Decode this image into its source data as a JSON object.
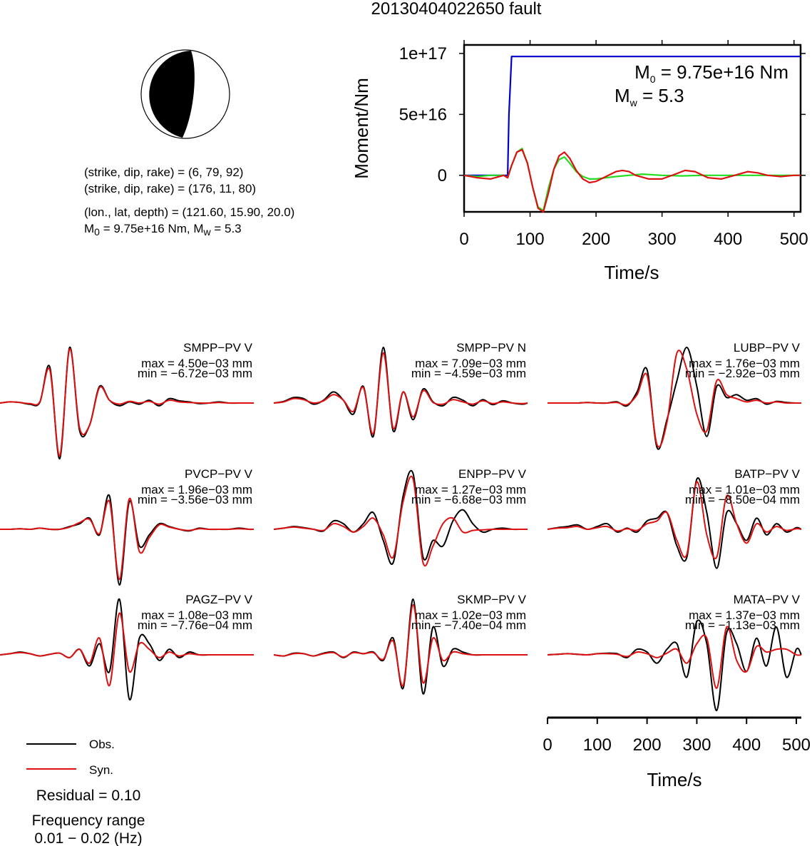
{
  "title": "20130404022650 fault",
  "mechanism": {
    "line1": "(strike, dip, rake) = (6, 79, 92)",
    "line2": "(strike, dip, rake) = (176, 11, 80)",
    "line3": "(lon., lat, depth) = (121.60, 15.90, 20.0)",
    "m0_prefix": "M",
    "m0_sub": "0",
    "m0_rest": " = 9.75e+16 Nm, M",
    "mw_sub": "w",
    "mw_rest": " = 5.3"
  },
  "stf": {
    "ylabel": "Moment/Nm",
    "xlabel": "Time/s",
    "annot_m0_prefix": "M",
    "annot_m0_sub": "0",
    "annot_m0_rest": " = 9.75e+16 Nm",
    "annot_mw_prefix": "M",
    "annot_mw_sub": "w",
    "annot_mw_rest": " = 5.3"
  },
  "wave_axis": {
    "xlabel": "Time/s"
  },
  "legend": {
    "obs": "Obs.",
    "syn": "Syn.",
    "residual": "Residual = 0.10",
    "freq_title": "Frequency range",
    "freq_value": "0.01 − 0.02 (Hz)"
  },
  "colors": {
    "moment": "#0000cc",
    "stf_green": "#22dd22",
    "observed": "#000000",
    "synthetic": "#dd1111"
  },
  "chart_data": [
    {
      "type": "line",
      "title": "",
      "xlabel": "Time/s",
      "ylabel": "Moment/Nm",
      "xlim": [
        0,
        510
      ],
      "ylim": [
        -3e+16,
        1.07e+17
      ],
      "xticks": [
        0,
        100,
        200,
        300,
        400,
        500
      ],
      "xtick_labels": [
        "0",
        "100",
        "200",
        "300",
        "400",
        "500"
      ],
      "yticks": [
        0,
        5e+16,
        1e+17
      ],
      "ytick_labels": [
        "0",
        "5e+16",
        "1e+17"
      ],
      "series": [
        {
          "name": "",
          "x": [
            0,
            60,
            66,
            68,
            72,
            510
          ],
          "y": [
            0,
            0,
            0,
            5e+16,
            9.75e+16,
            9.75e+16
          ]
        },
        {
          "name": "",
          "x": [
            0,
            20,
            40,
            60,
            66,
            72,
            80,
            88,
            96,
            104,
            112,
            120,
            128,
            136,
            144,
            152,
            160,
            170,
            180,
            190,
            200,
            215,
            230,
            250,
            270,
            300,
            330,
            360,
            400,
            440,
            480,
            510
          ],
          "y": [
            0,
            -1000000000000000.0,
            0,
            0,
            -2000000000000000.0,
            8000000000000000.0,
            1.9e+16,
            2.2e+16,
            1e+16,
            -1e+16,
            -2.6e+16,
            -2.9e+16,
            -1e+16,
            5000000000000000.0,
            1.3e+16,
            1.5e+16,
            1e+16,
            3000000000000000.0,
            -1000000000000000.0,
            -3000000000000000.0,
            -3000000000000000.0,
            -2000000000000000.0,
            -1000000000000000.0,
            0,
            1000000000000000.0,
            0,
            -500000000000000.0,
            0,
            0,
            0,
            0,
            0
          ]
        },
        {
          "name": "",
          "x": [
            0,
            20,
            40,
            60,
            66,
            72,
            80,
            88,
            96,
            104,
            112,
            120,
            128,
            136,
            144,
            152,
            160,
            170,
            180,
            190,
            200,
            215,
            230,
            240,
            250,
            260,
            280,
            300,
            320,
            335,
            350,
            370,
            390,
            410,
            430,
            445,
            460,
            480,
            500,
            510
          ],
          "y": [
            0,
            -2000000000000000.0,
            -3000000000000000.0,
            0,
            -2000000000000000.0,
            8000000000000000.0,
            1.9e+16,
            2.1e+16,
            1e+16,
            -1e+16,
            -2.7e+16,
            -3e+16,
            -1.4e+16,
            5000000000000000.0,
            1.6e+16,
            1.9e+16,
            1.4e+16,
            4000000000000000.0,
            -3000000000000000.0,
            -6000000000000000.0,
            -5000000000000000.0,
            -1000000000000000.0,
            3000000000000000.0,
            4000000000000000.0,
            3000000000000000.0,
            0,
            -3000000000000000.0,
            -3000000000000000.0,
            1000000000000000.0,
            4000000000000000.0,
            3000000000000000.0,
            -2000000000000000.0,
            -3000000000000000.0,
            0,
            3000000000000000.0,
            2000000000000000.0,
            0,
            -1000000000000000.0,
            0,
            0
          ]
        }
      ]
    },
    {
      "type": "line",
      "title": "",
      "xlabel": "Time/s",
      "xlim": [
        0,
        510
      ],
      "xticks": [
        0,
        100,
        200,
        300,
        400,
        500
      ],
      "xtick_labels": [
        "0",
        "100",
        "200",
        "300",
        "400",
        "500"
      ],
      "x": [
        0,
        20,
        40,
        60,
        80,
        100,
        120,
        140,
        160,
        180,
        200,
        220,
        240,
        260,
        280,
        300,
        320,
        340,
        360,
        380,
        400,
        420,
        440,
        460,
        480,
        500,
        510
      ],
      "panels": [
        {
          "station": "SMPP−PV V",
          "max": "max = 4.50e−03 mm",
          "min": "min = −6.72e−03 mm",
          "obs": [
            0,
            0.02,
            0.01,
            -0.02,
            0.01,
            0.65,
            -1.0,
            1.0,
            -0.5,
            -0.4,
            0.3,
            0.05,
            -0.05,
            0.02,
            -0.02,
            0.05,
            -0.05,
            0.08,
            0.04,
            0.02,
            -0.01,
            0,
            0.02,
            0,
            0,
            0,
            0
          ],
          "syn": [
            0,
            0.02,
            0.01,
            -0.01,
            0.02,
            0.6,
            -0.95,
            0.97,
            -0.45,
            -0.4,
            0.28,
            0.05,
            -0.02,
            0.03,
            0,
            0.03,
            -0.02,
            0.05,
            0.02,
            0.01,
            0,
            0,
            0.01,
            0,
            0,
            0,
            0
          ]
        },
        {
          "station": "SMPP−PV N",
          "max": "max = 7.09e−03 mm",
          "min": "min = −4.59e−03 mm",
          "obs": [
            0,
            0.03,
            0.1,
            0.08,
            -0.02,
            0.05,
            0.2,
            0.05,
            -0.2,
            0.3,
            -0.6,
            1.0,
            -0.5,
            0.2,
            -0.3,
            0.25,
            0.02,
            -0.05,
            0.1,
            0.05,
            -0.05,
            0.06,
            -0.03,
            0.04,
            0,
            -0.02,
            0
          ],
          "syn": [
            0,
            0.02,
            0.08,
            0.06,
            0,
            0.04,
            0.15,
            0.05,
            -0.15,
            0.28,
            -0.55,
            0.9,
            -0.45,
            0.2,
            -0.25,
            0.22,
            0.01,
            -0.02,
            0.06,
            0.02,
            -0.02,
            0.04,
            -0.01,
            0.02,
            0,
            -0.01,
            0
          ]
        },
        {
          "station": "LUBP−PV V",
          "max": "max = 1.76e−03 mm",
          "min": "min = −2.92e−03 mm",
          "obs": [
            0,
            0,
            0,
            0,
            0.01,
            0,
            0,
            0.02,
            -0.05,
            0.2,
            0.6,
            -0.8,
            -0.3,
            0.4,
            1.0,
            0.3,
            -0.6,
            0.3,
            0.1,
            0.15,
            0.05,
            0.08,
            -0.02,
            0.03,
            0.01,
            0,
            0
          ],
          "syn": [
            0,
            0,
            0,
            0,
            0.01,
            0,
            0,
            0.01,
            -0.03,
            0.15,
            0.5,
            -0.75,
            -0.35,
            0.9,
            0.6,
            -0.2,
            -0.5,
            0.4,
            0.15,
            0.08,
            0.02,
            0.05,
            0,
            0.02,
            0,
            0,
            0
          ]
        },
        {
          "station": "PVCP−PV V",
          "max": "max = 1.96e−03 mm",
          "min": "min = −3.56e−03 mm",
          "obs": [
            0,
            0,
            0.01,
            0,
            0.02,
            0,
            0,
            0.05,
            0.1,
            0.2,
            -0.1,
            0.6,
            -1.0,
            0.5,
            -0.3,
            -0.1,
            0.1,
            0.05,
            0,
            -0.03,
            0.02,
            0,
            0,
            0,
            0.02,
            0,
            0
          ],
          "syn": [
            0,
            0,
            0.01,
            0,
            0.02,
            0,
            0,
            0.04,
            0.12,
            0.18,
            -0.08,
            0.5,
            -0.9,
            0.55,
            -0.4,
            -0.15,
            0.08,
            0.04,
            0,
            -0.02,
            0.01,
            0,
            0,
            0,
            0.01,
            0,
            0
          ]
        },
        {
          "station": "ENPP−PV V",
          "max": "max = 1.27e−03 mm",
          "min": "min = −6.68e−03 mm",
          "obs": [
            0,
            0.02,
            0.05,
            0.03,
            0,
            -0.03,
            0.15,
            0.1,
            -0.05,
            0.1,
            0.3,
            -0.2,
            -0.6,
            0.6,
            1.0,
            -0.5,
            -0.2,
            -0.3,
            0.15,
            0.35,
            0.1,
            -0.05,
            0,
            0.02,
            0,
            0,
            0
          ],
          "syn": [
            0,
            0.02,
            0.04,
            0.02,
            0,
            -0.02,
            0.1,
            0.05,
            -0.05,
            0.05,
            0.2,
            -0.1,
            -0.5,
            0.5,
            0.9,
            -0.6,
            -0.3,
            0.1,
            0.2,
            -0.05,
            -0.02,
            -0.01,
            0,
            0,
            0,
            0,
            0
          ]
        },
        {
          "station": "BATP−PV V",
          "max": "max = 1.01e−03 mm",
          "min": "min = −8.50e−04 mm",
          "obs": [
            0,
            0.03,
            0.05,
            0.08,
            0,
            0.05,
            0.1,
            -0.05,
            0.02,
            -0.05,
            0.15,
            0.2,
            0.3,
            -0.3,
            -0.5,
            0.9,
            0.3,
            -0.7,
            0.3,
            0.1,
            -0.2,
            0.2,
            -0.1,
            0.1,
            -0.05,
            0.03,
            0
          ],
          "syn": [
            0,
            0.02,
            0.03,
            0.05,
            0,
            0.03,
            0.05,
            -0.03,
            0.01,
            -0.02,
            0.1,
            0.15,
            0.3,
            -0.2,
            -0.45,
            0.85,
            -0.1,
            -0.5,
            0.6,
            0.1,
            -0.25,
            0.1,
            -0.05,
            0.05,
            -0.02,
            0.01,
            0
          ]
        },
        {
          "station": "PAGZ−PV V",
          "max": "max = 1.08e−03 mm",
          "min": "min = −7.76e−04 mm",
          "obs": [
            0,
            0.02,
            0.05,
            0.02,
            -0.02,
            0.01,
            0.03,
            -0.05,
            0.1,
            -0.2,
            0.2,
            -0.3,
            1.0,
            -0.8,
            0.3,
            0.2,
            -0.1,
            0.1,
            -0.05,
            0.05,
            0,
            0,
            0,
            0,
            0,
            0,
            0
          ],
          "syn": [
            0,
            0.02,
            0.04,
            0.02,
            -0.02,
            0.01,
            0.03,
            -0.05,
            0.1,
            -0.15,
            0.3,
            -0.55,
            0.75,
            -0.3,
            0.2,
            0.1,
            -0.05,
            0.05,
            -0.02,
            0.02,
            0,
            0,
            0,
            0,
            0,
            0,
            0
          ]
        },
        {
          "station": "SKMP−PV V",
          "max": "max = 1.02e−03 mm",
          "min": "min = −7.40e−04 mm",
          "obs": [
            0,
            -0.02,
            0.03,
            0.02,
            -0.02,
            0.03,
            0.05,
            -0.05,
            0.05,
            0.02,
            0.05,
            -0.1,
            0.3,
            -0.6,
            1.0,
            -0.7,
            0.5,
            -0.2,
            0.1,
            0.05,
            0,
            0,
            0,
            0,
            0,
            0,
            0
          ],
          "syn": [
            0,
            -0.02,
            0.02,
            0.02,
            -0.02,
            0.02,
            0.04,
            -0.04,
            0.04,
            0.02,
            0.04,
            -0.08,
            0.25,
            -0.55,
            0.9,
            -0.5,
            0.3,
            -0.1,
            0.05,
            0.02,
            0,
            0,
            0,
            0,
            0,
            0,
            0
          ]
        },
        {
          "station": "MATA−PV V",
          "max": "max = 1.37e−03 mm",
          "min": "min = −1.13e−03 mm",
          "obs": [
            0,
            0.01,
            0.02,
            0.01,
            0,
            0.02,
            0.03,
            0.02,
            -0.05,
            0.1,
            0.05,
            -0.15,
            0.1,
            0.2,
            -0.4,
            0.6,
            0.2,
            -1.0,
            0.4,
            0.2,
            -0.3,
            0.3,
            -0.2,
            0.5,
            -0.4,
            0.1,
            0
          ],
          "syn": [
            0,
            0.01,
            0.02,
            0.01,
            0,
            0.02,
            0.02,
            0.01,
            -0.03,
            0.05,
            0.02,
            -0.05,
            0.03,
            0.1,
            -0.15,
            0.2,
            0.3,
            -0.6,
            0.5,
            -0.1,
            -0.3,
            0.15,
            0.05,
            0.1,
            0.1,
            0,
            0
          ]
        }
      ]
    }
  ]
}
